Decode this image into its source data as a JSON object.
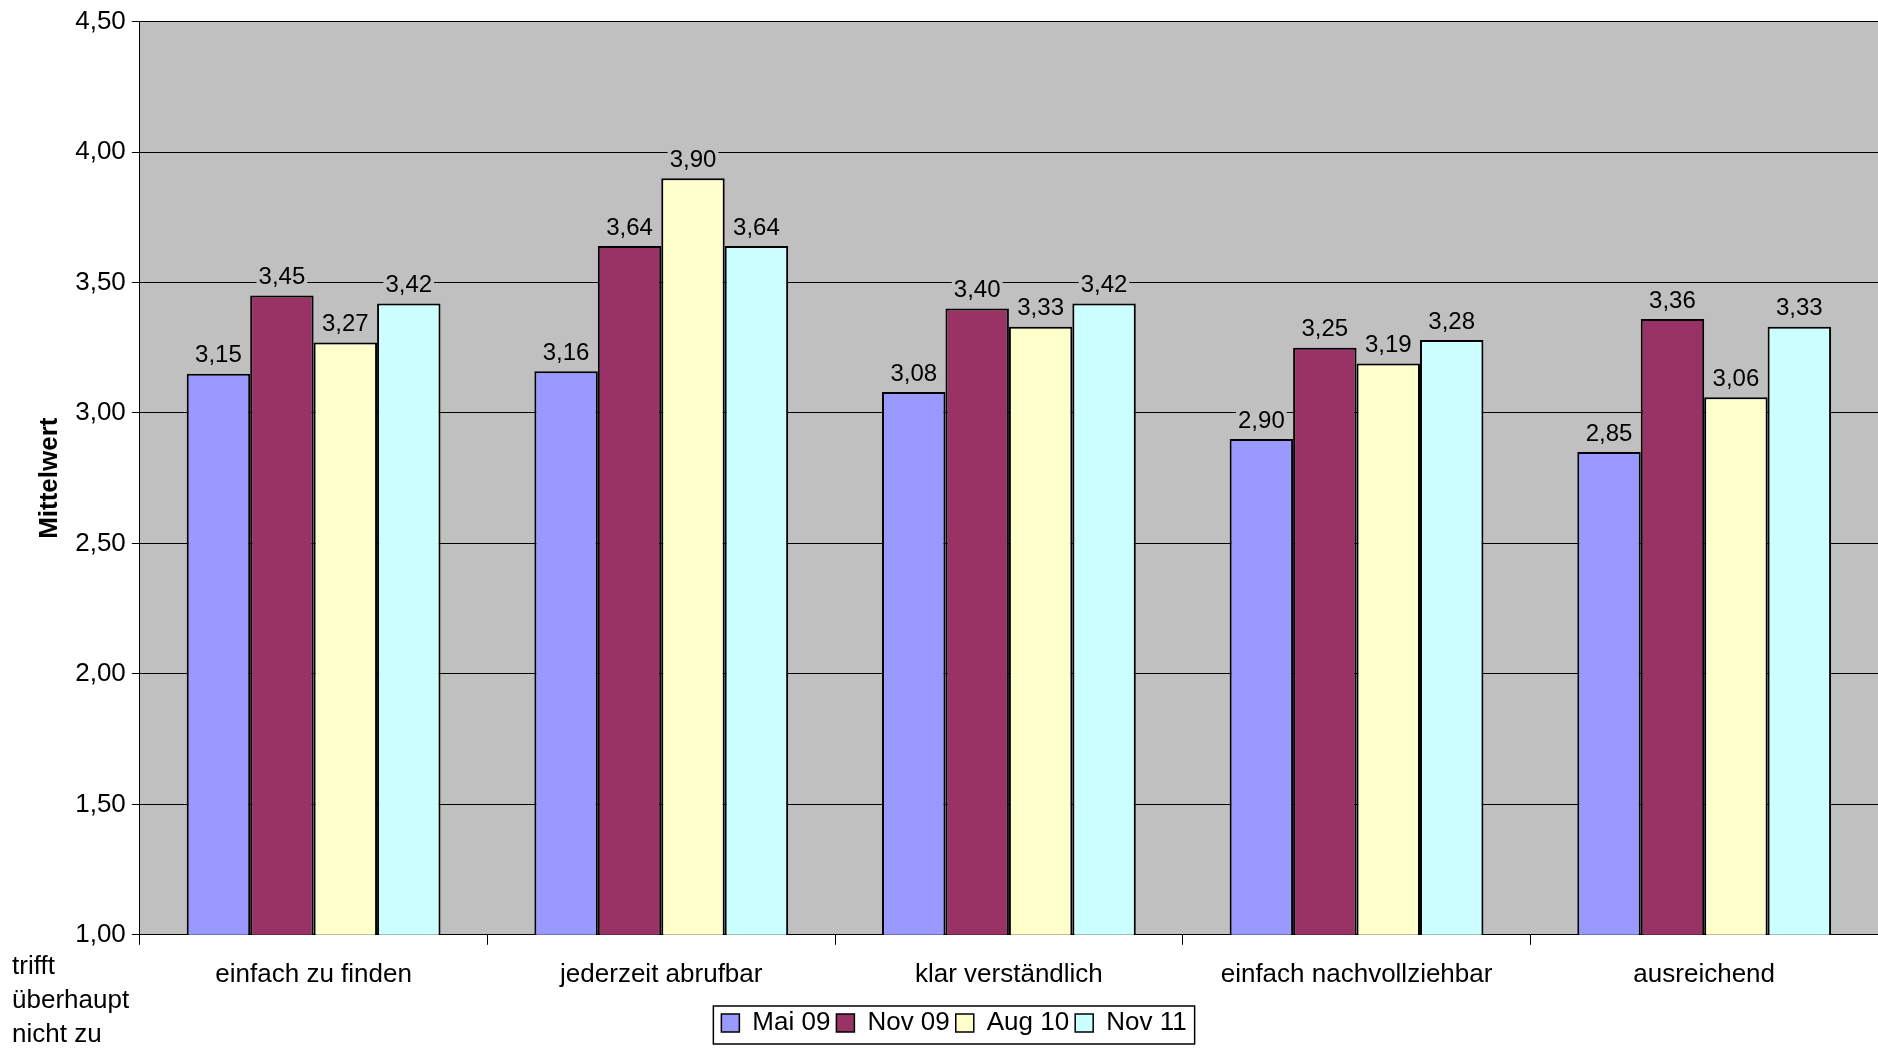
{
  "chart_data": {
    "type": "bar",
    "ylabel": "Mittelwert",
    "categories": [
      "einfach zu finden",
      "jederzeit abrufbar",
      "klar verständlich",
      "einfach nachvollziehbar",
      "ausreichend"
    ],
    "series": [
      {
        "name": "Mai 09",
        "color": "#9999ff",
        "values": [
          3.15,
          3.16,
          3.08,
          2.9,
          2.85
        ],
        "value_labels": [
          "3,15",
          "3,16",
          "3,08",
          "2,90",
          "2,85"
        ]
      },
      {
        "name": "Nov 09",
        "color": "#993366",
        "values": [
          3.45,
          3.64,
          3.4,
          3.25,
          3.36
        ],
        "value_labels": [
          "3,45",
          "3,64",
          "3,40",
          "3,25",
          "3,36"
        ]
      },
      {
        "name": "Aug 10",
        "color": "#ffffcc",
        "values": [
          3.27,
          3.9,
          3.33,
          3.19,
          3.06
        ],
        "value_labels": [
          "3,27",
          "3,90",
          "3,33",
          "3,19",
          "3,06"
        ]
      },
      {
        "name": "Nov 11",
        "color": "#ccffff",
        "values": [
          3.42,
          3.64,
          3.42,
          3.28,
          3.33
        ],
        "value_labels": [
          "3,42",
          "3,64",
          "3,42",
          "3,28",
          "3,33"
        ]
      }
    ],
    "ylim": [
      1,
      4.5
    ],
    "yticks": [
      {
        "value": 1,
        "label": "1,00"
      },
      {
        "value": 1.5,
        "label": "1,50"
      },
      {
        "value": 2,
        "label": "2,00"
      },
      {
        "value": 2.5,
        "label": "2,50"
      },
      {
        "value": 3,
        "label": "3,00"
      },
      {
        "value": 3.5,
        "label": "3,50"
      },
      {
        "value": 4,
        "label": "4,00"
      },
      {
        "value": 4.5,
        "label": "4,50"
      }
    ],
    "grid": "y",
    "legend": "bottom",
    "annotations": [
      "trifft überhaupt nicht zu"
    ]
  }
}
